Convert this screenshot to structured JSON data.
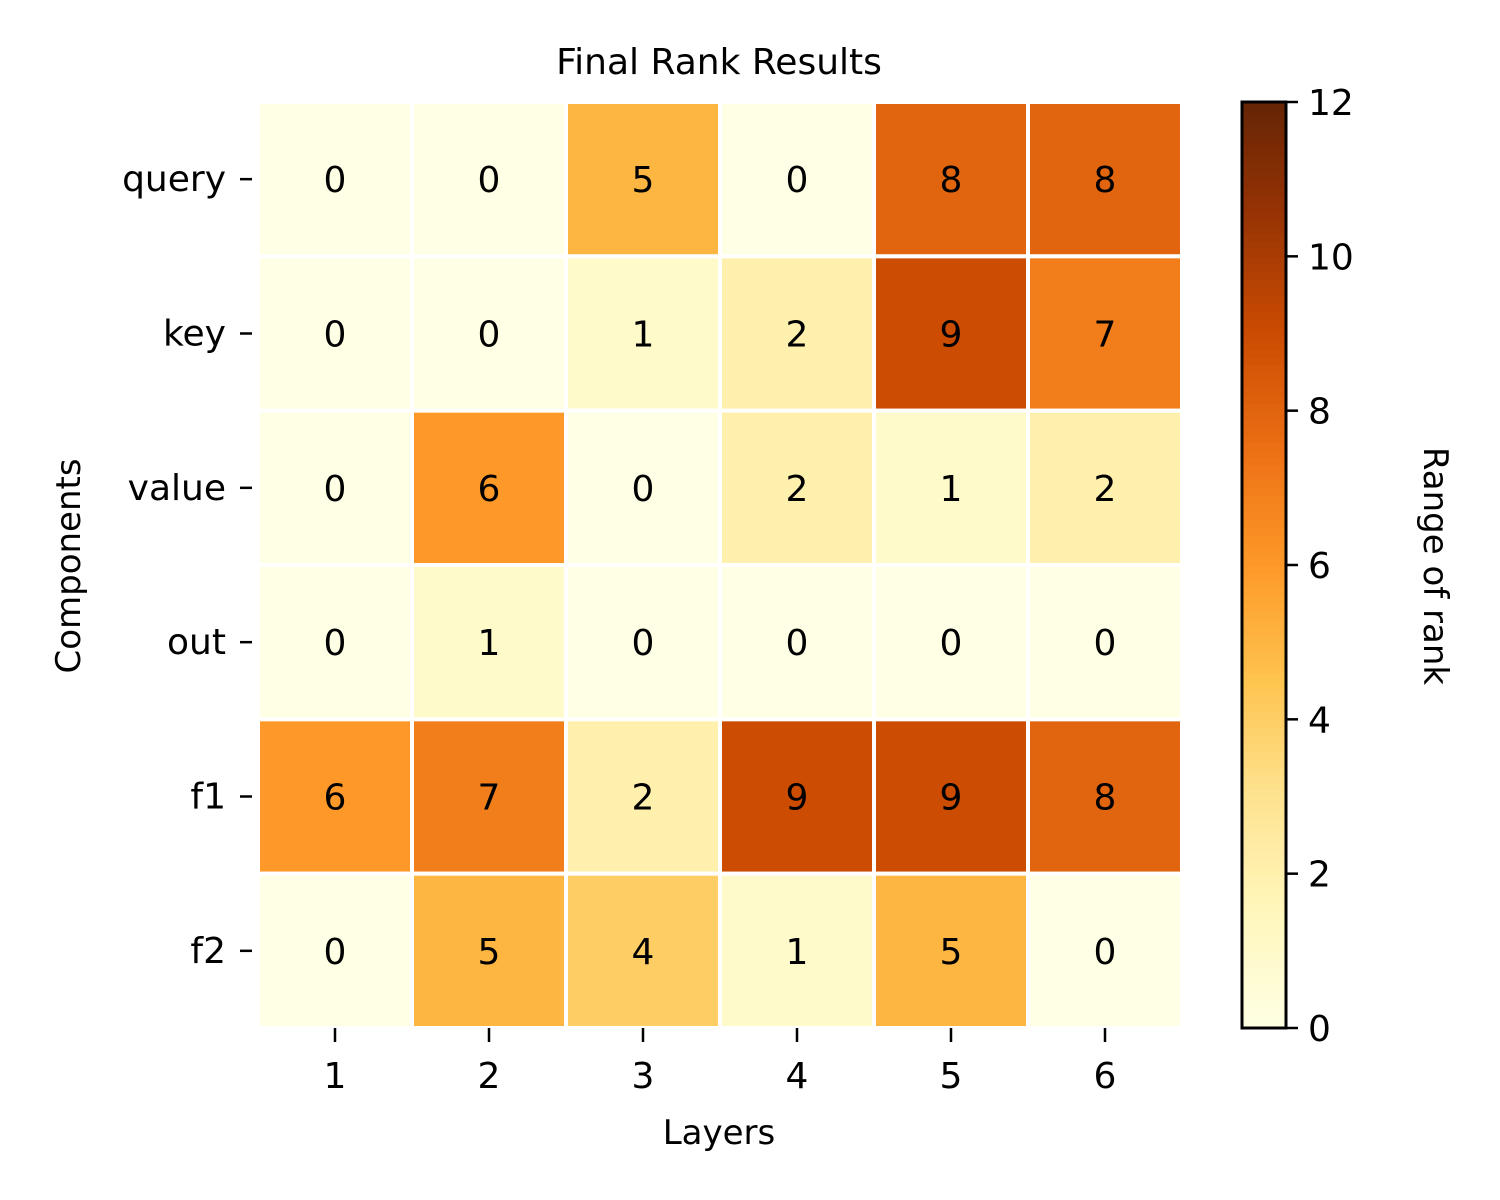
{
  "chart_data": {
    "type": "heatmap",
    "title": "Final Rank Results",
    "xlabel": "Layers",
    "ylabel": "Components",
    "x_categories": [
      "1",
      "2",
      "3",
      "4",
      "5",
      "6"
    ],
    "y_categories": [
      "query",
      "key",
      "value",
      "out",
      "f1",
      "f2"
    ],
    "values": [
      [
        0,
        0,
        5,
        0,
        8,
        8
      ],
      [
        0,
        0,
        1,
        2,
        9,
        7
      ],
      [
        0,
        6,
        0,
        2,
        1,
        2
      ],
      [
        0,
        1,
        0,
        0,
        0,
        0
      ],
      [
        6,
        7,
        2,
        9,
        9,
        8
      ],
      [
        0,
        5,
        4,
        1,
        5,
        0
      ]
    ],
    "colorbar": {
      "label": "Range of rank",
      "range": [
        0,
        12
      ],
      "ticks": [
        0,
        2,
        4,
        6,
        8,
        10,
        12
      ],
      "colormap": "YlOrBr",
      "colors": [
        "#ffffe5",
        "#fff7bc",
        "#fee391",
        "#fec44f",
        "#fe9929",
        "#ec7014",
        "#cc4c02",
        "#993404",
        "#662506"
      ]
    },
    "grid": false,
    "legend": "colorbar-right"
  }
}
